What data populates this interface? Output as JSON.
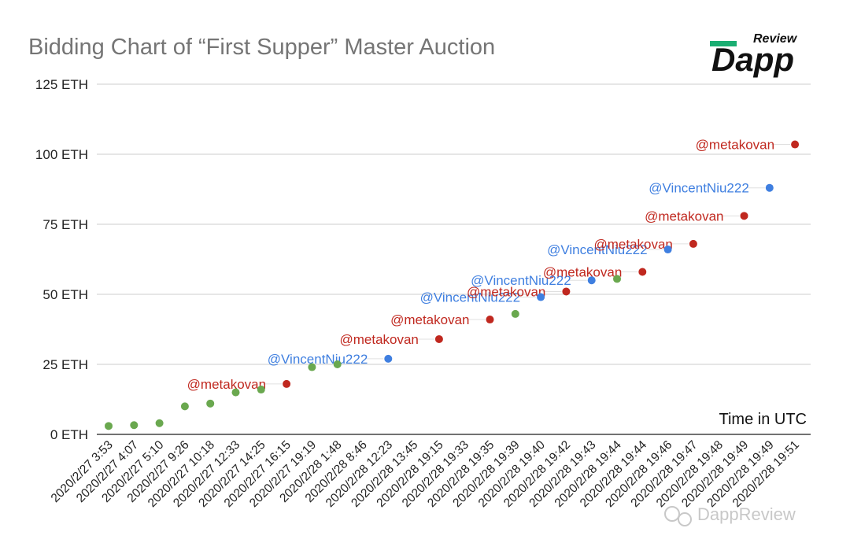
{
  "chart_data": {
    "type": "scatter",
    "title": "Bidding Chart of “First Supper” Master Auction",
    "ylim": [
      0,
      125
    ],
    "y_ticks": [
      "125 ETH",
      "100 ETH",
      "75 ETH",
      "50 ETH",
      "25 ETH",
      "0 ETH"
    ],
    "y_tick_values": [
      125,
      100,
      75,
      50,
      25,
      0
    ],
    "grid": true,
    "x_note": "Time in UTC",
    "categories": [
      "2020/2/27 3:53",
      "2020/2/27 4:07",
      "2020/2/27 5:10",
      "2020/2/27 9:26",
      "2020/2/27 10:18",
      "2020/2/27 12:33",
      "2020/2/27 14:25",
      "2020/2/27 16:15",
      "2020/2/27 19:19",
      "2020/2/28 1:48",
      "2020/2/28 8:46",
      "2020/2/28 12:23",
      "2020/2/28 13:45",
      "2020/2/28 19:15",
      "2020/2/28 19:33",
      "2020/2/28 19:35",
      "2020/2/28 19:39",
      "2020/2/28 19:40",
      "2020/2/28 19:42",
      "2020/2/28 19:43",
      "2020/2/28 19:44",
      "2020/2/28 19:44",
      "2020/2/28 19:46",
      "2020/2/28 19:47",
      "2020/2/28 19:48",
      "2020/2/28 19:49",
      "2020/2/28 19:49",
      "2020/2/28 19:51"
    ],
    "values": [
      3,
      3.3,
      4,
      10,
      11,
      15,
      16,
      18,
      24,
      25,
      27,
      34,
      41,
      43,
      49,
      51,
      55,
      55.5,
      58,
      66,
      68,
      78,
      88,
      103.5
    ],
    "bidder": [
      "other",
      "other",
      "other",
      "other",
      "other",
      "other",
      "other",
      "metakovan",
      "other",
      "other",
      "VincentNiu222",
      "metakovan",
      "metakovan",
      "other",
      "VincentNiu222",
      "metakovan",
      "VincentNiu222",
      "other",
      "metakovan",
      "VincentNiu222",
      "metakovan",
      "metakovan",
      "VincentNiu222",
      "metakovan"
    ],
    "point_category_index": [
      0,
      1,
      2,
      3,
      4,
      5,
      6,
      7,
      8,
      9,
      11,
      13,
      15,
      16,
      17,
      18,
      19,
      20,
      21,
      22,
      23,
      25,
      26,
      27
    ],
    "labels": [
      "",
      "",
      "",
      "",
      "",
      "",
      "",
      "@metakovan",
      "",
      "",
      "@VincentNiu222",
      "@metakovan",
      "@metakovan",
      "",
      "@VincentNiu222",
      "@metakovan",
      "@VincentNiu222",
      "",
      "@metakovan",
      "@VincentNiu222",
      "@metakovan",
      "@metakovan",
      "@VincentNiu222",
      "@metakovan"
    ],
    "colors": {
      "metakovan": "#c0281f",
      "VincentNiu222": "#3f7fe0",
      "other": "#6aa84f",
      "grid": "#cccccc",
      "axis": "#444444"
    }
  },
  "logo": {
    "review": "Review",
    "dapp": "Dapp",
    "accent": "#1aae72"
  },
  "watermark": {
    "text": "DappReview"
  }
}
